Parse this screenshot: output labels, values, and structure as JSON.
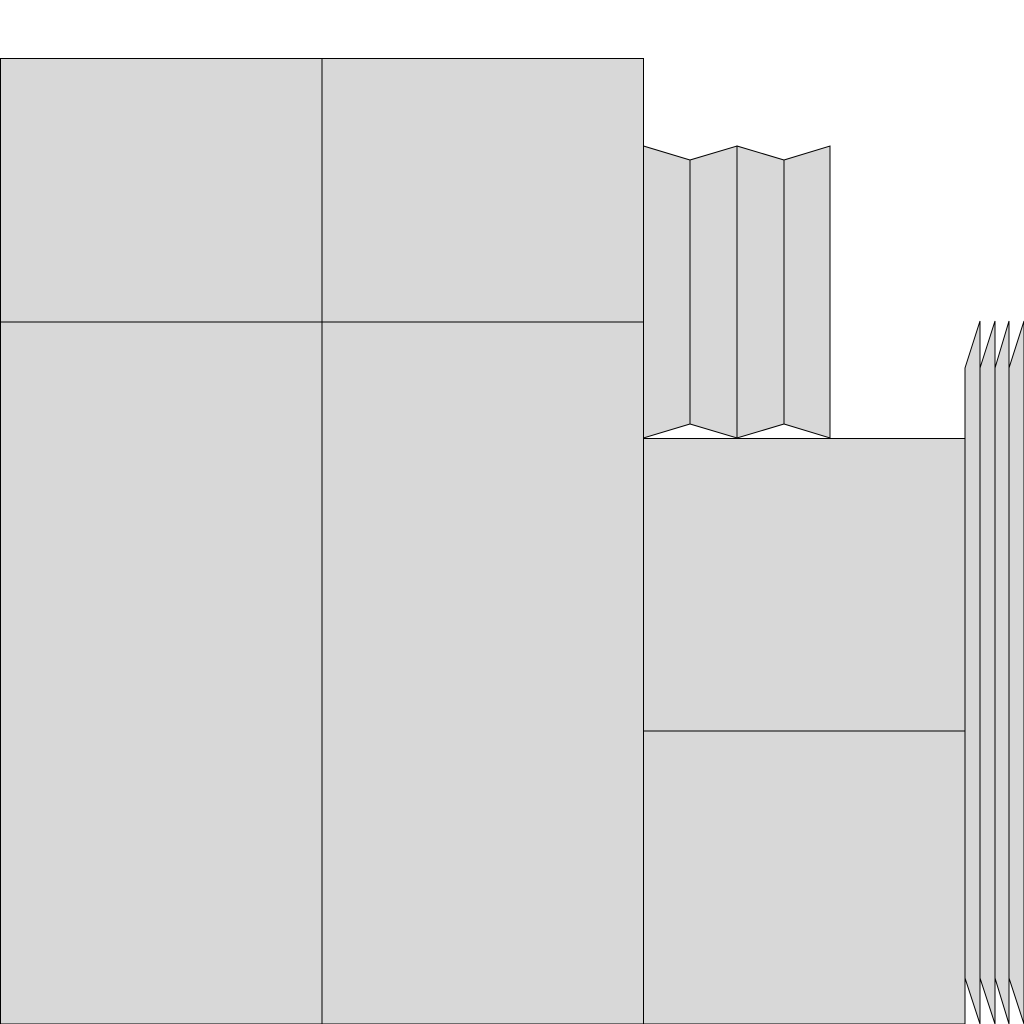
{
  "colors": {
    "fill": "#d8d8d8",
    "stroke": "#000000",
    "background": "#ffffff"
  }
}
